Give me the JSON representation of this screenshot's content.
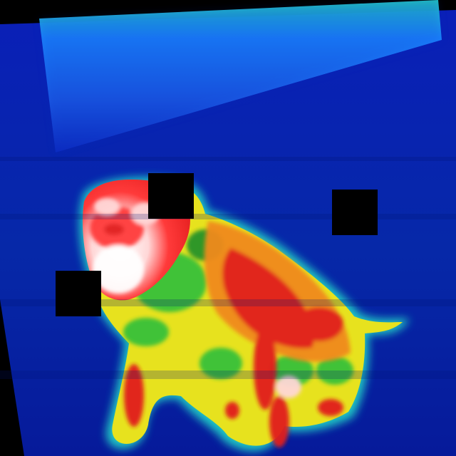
{
  "image": {
    "subject": "dog-thermal",
    "palette": {
      "cold": "#000a8c",
      "cool": "#0a2fd6",
      "mid": "#19a3ff",
      "cyan": "#21d6c8",
      "green": "#2fbf3a",
      "yellow": "#e7e21e",
      "orange": "#f08a1c",
      "hot": "#e11b1b",
      "hottest": "#ffffff"
    }
  }
}
